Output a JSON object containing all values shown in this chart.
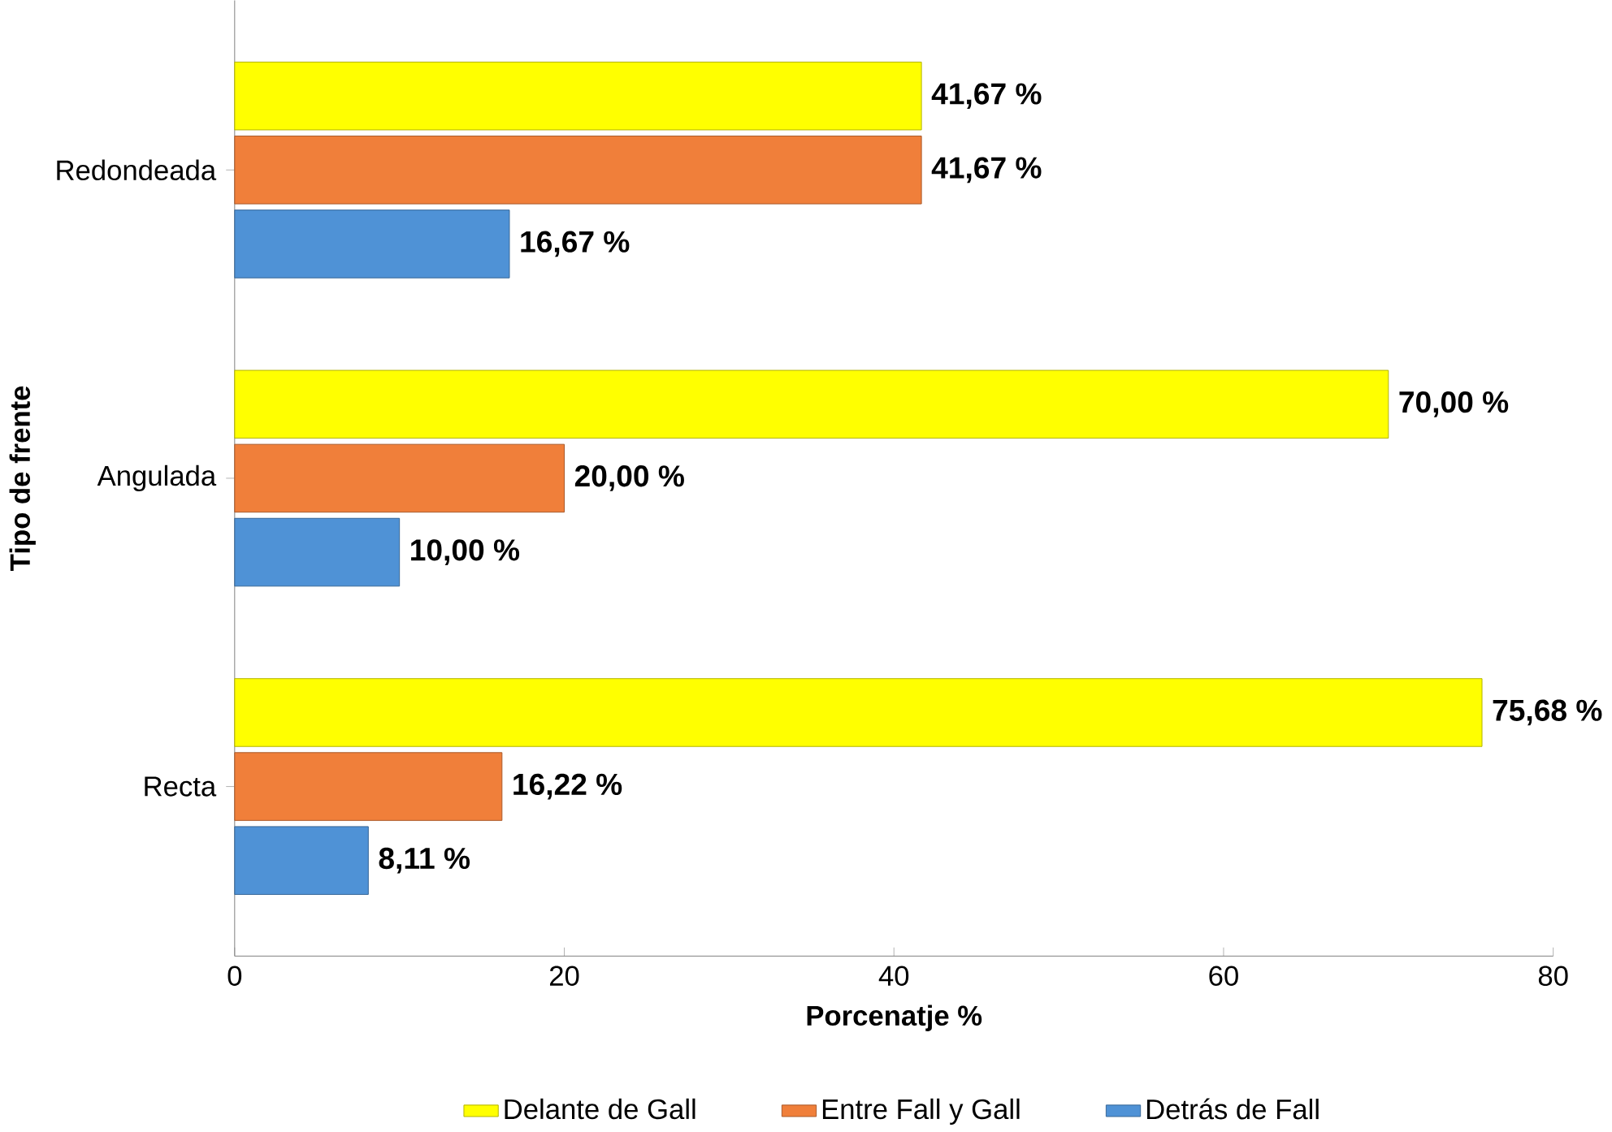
{
  "chart_data": {
    "type": "bar",
    "orientation": "horizontal",
    "xlabel": "Porcenatje %",
    "ylabel": "Tipo de frente",
    "categories": [
      "Redondeada",
      "Angulada",
      "Recta"
    ],
    "series": [
      {
        "name": "Delante de Gall",
        "color": "#ffff00",
        "values": [
          41.67,
          70.0,
          75.68
        ],
        "value_labels": [
          "41,67 %",
          "70,00 %",
          "75,68 %"
        ]
      },
      {
        "name": "Entre Fall y Gall",
        "color": "#f07f3a",
        "values": [
          41.67,
          20.0,
          16.22
        ],
        "value_labels": [
          "41,67 %",
          "20,00 %",
          "16,22 %"
        ]
      },
      {
        "name": "Detrás de  Fall",
        "color": "#4f92d6",
        "values": [
          16.67,
          10.0,
          8.11
        ],
        "value_labels": [
          "16,67 %",
          "10,00 %",
          "8,11 %"
        ]
      }
    ],
    "xlim": [
      0,
      80
    ],
    "xticks": [
      0,
      20,
      40,
      60,
      80
    ],
    "grid": false,
    "legend": "bottom"
  }
}
